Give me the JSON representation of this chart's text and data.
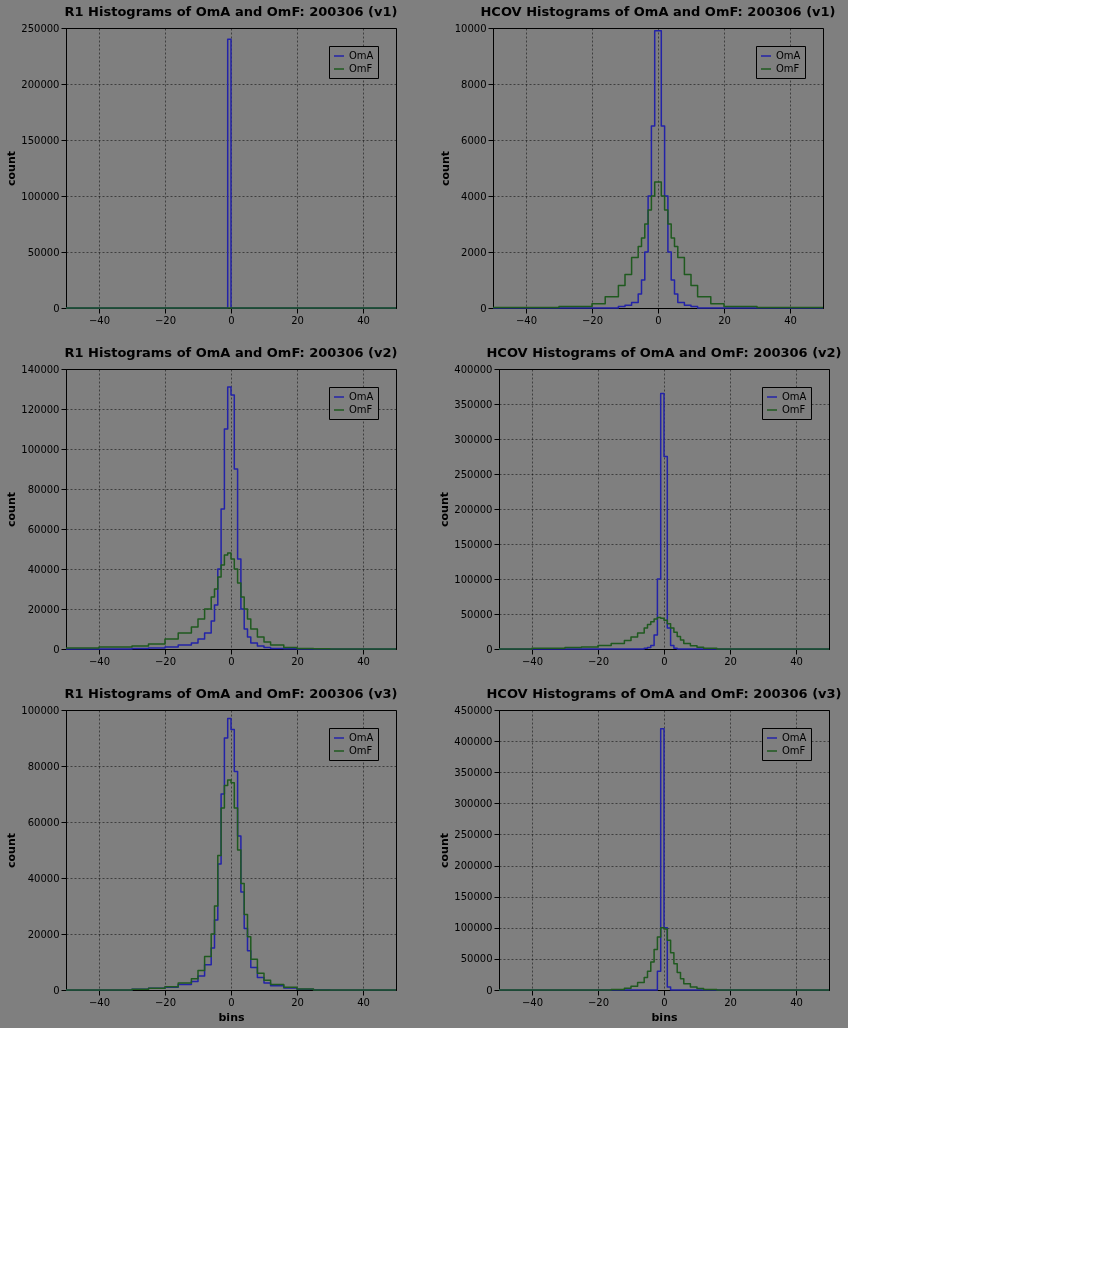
{
  "chart_data": [
    {
      "type": "histogram",
      "title": "R1 Histograms of OmA and OmF: 200306 (v1)",
      "ylabel": "count",
      "bins": [
        -50,
        -40,
        -30,
        -25,
        -20,
        -16,
        -12,
        -10,
        -8,
        -6,
        -5,
        -4,
        -3,
        -2,
        -1,
        0,
        1,
        2,
        3,
        4,
        5,
        6,
        8,
        10,
        12,
        16,
        20,
        25,
        30,
        40,
        50
      ],
      "xlim": [
        -50,
        50
      ],
      "xticks": [
        -40,
        -20,
        0,
        20,
        40
      ],
      "ylim": [
        0,
        250000
      ],
      "yticks": [
        0,
        50000,
        100000,
        150000,
        200000,
        250000
      ],
      "grid": true,
      "legend": "top right",
      "series": [
        {
          "name": "OmA",
          "color": "#2323a8",
          "values": [
            0,
            0,
            0,
            0,
            0,
            0,
            0,
            0,
            0,
            0,
            0,
            0,
            0,
            0,
            240000,
            0,
            0,
            0,
            0,
            0,
            0,
            0,
            0,
            0,
            0,
            0,
            0,
            0,
            0,
            0
          ]
        },
        {
          "name": "OmF",
          "color": "#1f5a1f",
          "values": [
            0,
            0,
            0,
            0,
            0,
            0,
            0,
            0,
            0,
            0,
            0,
            0,
            0,
            0,
            0,
            0,
            0,
            0,
            0,
            0,
            0,
            0,
            0,
            0,
            0,
            0,
            0,
            0,
            0,
            0
          ]
        }
      ]
    },
    {
      "type": "histogram",
      "title": "HCOV Histograms of OmA and OmF: 200306 (v1)",
      "ylabel": "count",
      "bins": [
        -50,
        -40,
        -30,
        -25,
        -20,
        -16,
        -12,
        -10,
        -8,
        -6,
        -5,
        -4,
        -3,
        -2,
        -1,
        0,
        1,
        2,
        3,
        4,
        5,
        6,
        8,
        10,
        12,
        16,
        20,
        25,
        30,
        40,
        50
      ],
      "xlim": [
        -50,
        50
      ],
      "xticks": [
        -40,
        -20,
        0,
        20,
        40
      ],
      "ylim": [
        0,
        10000
      ],
      "yticks": [
        0,
        2000,
        4000,
        6000,
        8000,
        10000
      ],
      "grid": true,
      "legend": "top right",
      "series": [
        {
          "name": "OmA",
          "color": "#2323a8",
          "values": [
            0,
            0,
            0,
            0,
            0,
            0,
            50,
            100,
            200,
            500,
            1000,
            2000,
            4000,
            6500,
            9900,
            9900,
            6500,
            4000,
            2000,
            1000,
            500,
            200,
            100,
            50,
            0,
            0,
            0,
            0,
            0,
            0
          ]
        },
        {
          "name": "OmF",
          "color": "#1f5a1f",
          "values": [
            20,
            20,
            50,
            50,
            150,
            400,
            800,
            1200,
            1800,
            2200,
            2500,
            3000,
            3500,
            4000,
            4500,
            4500,
            4000,
            3500,
            3000,
            2500,
            2200,
            1800,
            1200,
            800,
            400,
            150,
            50,
            50,
            20,
            20
          ]
        }
      ]
    },
    {
      "type": "histogram",
      "title": "R1 Histograms of OmA and OmF: 200306 (v2)",
      "ylabel": "count",
      "bins": [
        -50,
        -40,
        -30,
        -25,
        -20,
        -16,
        -12,
        -10,
        -8,
        -6,
        -5,
        -4,
        -3,
        -2,
        -1,
        0,
        1,
        2,
        3,
        4,
        5,
        6,
        8,
        10,
        12,
        16,
        20,
        25,
        30,
        40,
        50
      ],
      "xlim": [
        -50,
        50
      ],
      "xticks": [
        -40,
        -20,
        0,
        20,
        40
      ],
      "ylim": [
        0,
        140000
      ],
      "yticks": [
        0,
        20000,
        40000,
        60000,
        80000,
        100000,
        120000,
        140000
      ],
      "grid": true,
      "legend": "top right",
      "series": [
        {
          "name": "OmA",
          "color": "#2323a8",
          "values": [
            0,
            0,
            200,
            500,
            1000,
            2000,
            3000,
            5000,
            8000,
            14000,
            22000,
            40000,
            70000,
            110000,
            131000,
            127000,
            90000,
            45000,
            20000,
            10000,
            6000,
            3000,
            1500,
            800,
            300,
            100,
            0,
            0,
            0,
            0
          ]
        },
        {
          "name": "OmF",
          "color": "#1f5a1f",
          "values": [
            500,
            1000,
            1500,
            2500,
            5000,
            8000,
            11000,
            15000,
            20000,
            26000,
            30000,
            36000,
            42000,
            47000,
            48000,
            45000,
            40000,
            33000,
            26000,
            20000,
            15000,
            10000,
            6000,
            3500,
            2000,
            800,
            300,
            100,
            0,
            0
          ]
        }
      ]
    },
    {
      "type": "histogram",
      "title": "HCOV Histograms of OmA and OmF: 200306 (v2)",
      "ylabel": "count",
      "bins": [
        -50,
        -40,
        -30,
        -25,
        -20,
        -16,
        -12,
        -10,
        -8,
        -6,
        -5,
        -4,
        -3,
        -2,
        -1,
        0,
        1,
        2,
        3,
        4,
        5,
        6,
        8,
        10,
        12,
        16,
        20,
        25,
        30,
        40,
        50
      ],
      "xlim": [
        -50,
        50
      ],
      "xticks": [
        -40,
        -20,
        0,
        20,
        40
      ],
      "ylim": [
        0,
        400000
      ],
      "yticks": [
        0,
        50000,
        100000,
        150000,
        200000,
        250000,
        300000,
        350000,
        400000
      ],
      "grid": true,
      "legend": "top right",
      "series": [
        {
          "name": "OmA",
          "color": "#2323a8",
          "values": [
            0,
            0,
            0,
            0,
            0,
            0,
            0,
            0,
            0,
            1000,
            2000,
            5000,
            20000,
            100000,
            365000,
            275000,
            30000,
            5000,
            1000,
            0,
            0,
            0,
            0,
            0,
            0,
            0,
            0,
            0,
            0,
            0
          ]
        },
        {
          "name": "OmF",
          "color": "#1f5a1f",
          "values": [
            0,
            1000,
            2000,
            3000,
            5000,
            8000,
            12000,
            17000,
            23000,
            30000,
            35000,
            39000,
            43000,
            45000,
            44000,
            41000,
            36000,
            30000,
            24000,
            18000,
            13000,
            8000,
            4500,
            2500,
            1000,
            0,
            0,
            0,
            0,
            0
          ]
        }
      ]
    },
    {
      "type": "histogram",
      "title": "R1 Histograms of OmA and OmF: 200306 (v3)",
      "xlabel": "bins",
      "ylabel": "count",
      "bins": [
        -50,
        -40,
        -30,
        -25,
        -20,
        -16,
        -12,
        -10,
        -8,
        -6,
        -5,
        -4,
        -3,
        -2,
        -1,
        0,
        1,
        2,
        3,
        4,
        5,
        6,
        8,
        10,
        12,
        16,
        20,
        25,
        30,
        40,
        50
      ],
      "xlim": [
        -50,
        50
      ],
      "xticks": [
        -40,
        -20,
        0,
        20,
        40
      ],
      "ylim": [
        0,
        100000
      ],
      "yticks": [
        0,
        20000,
        40000,
        60000,
        80000,
        100000
      ],
      "grid": true,
      "legend": "top right",
      "series": [
        {
          "name": "OmA",
          "color": "#2323a8",
          "values": [
            0,
            0,
            300,
            600,
            1000,
            2000,
            3000,
            5000,
            9000,
            15000,
            25000,
            45000,
            70000,
            90000,
            97000,
            93000,
            78000,
            55000,
            35000,
            22000,
            14000,
            8000,
            4500,
            2500,
            1500,
            700,
            300,
            100,
            0,
            0
          ]
        },
        {
          "name": "OmF",
          "color": "#1f5a1f",
          "values": [
            0,
            0,
            300,
            600,
            1200,
            2500,
            4000,
            7000,
            12000,
            20000,
            30000,
            48000,
            65000,
            73000,
            75000,
            74000,
            65000,
            50000,
            38000,
            27000,
            19000,
            11000,
            6000,
            3500,
            2000,
            1000,
            400,
            0,
            0,
            0
          ]
        }
      ]
    },
    {
      "type": "histogram",
      "title": "HCOV Histograms of OmA and OmF: 200306 (v3)",
      "xlabel": "bins",
      "ylabel": "count",
      "bins": [
        -50,
        -40,
        -30,
        -25,
        -20,
        -16,
        -12,
        -10,
        -8,
        -6,
        -5,
        -4,
        -3,
        -2,
        -1,
        0,
        1,
        2,
        3,
        4,
        5,
        6,
        8,
        10,
        12,
        16,
        20,
        25,
        30,
        40,
        50
      ],
      "xlim": [
        -50,
        50
      ],
      "xticks": [
        -40,
        -20,
        0,
        20,
        40
      ],
      "ylim": [
        0,
        450000
      ],
      "yticks": [
        0,
        50000,
        100000,
        150000,
        200000,
        250000,
        300000,
        350000,
        400000,
        450000
      ],
      "grid": true,
      "legend": "top right",
      "series": [
        {
          "name": "OmA",
          "color": "#2323a8",
          "values": [
            0,
            0,
            0,
            0,
            0,
            0,
            0,
            0,
            0,
            0,
            0,
            0,
            0,
            30000,
            420000,
            100000,
            5000,
            0,
            0,
            0,
            0,
            0,
            0,
            0,
            0,
            0,
            0,
            0,
            0,
            0
          ]
        },
        {
          "name": "OmF",
          "color": "#1f5a1f",
          "values": [
            0,
            0,
            0,
            0,
            0,
            1000,
            3000,
            6000,
            12000,
            20000,
            30000,
            45000,
            65000,
            85000,
            100000,
            98000,
            80000,
            60000,
            42000,
            28000,
            18000,
            10000,
            5000,
            2500,
            1000,
            0,
            0,
            0,
            0,
            0
          ]
        }
      ]
    }
  ]
}
